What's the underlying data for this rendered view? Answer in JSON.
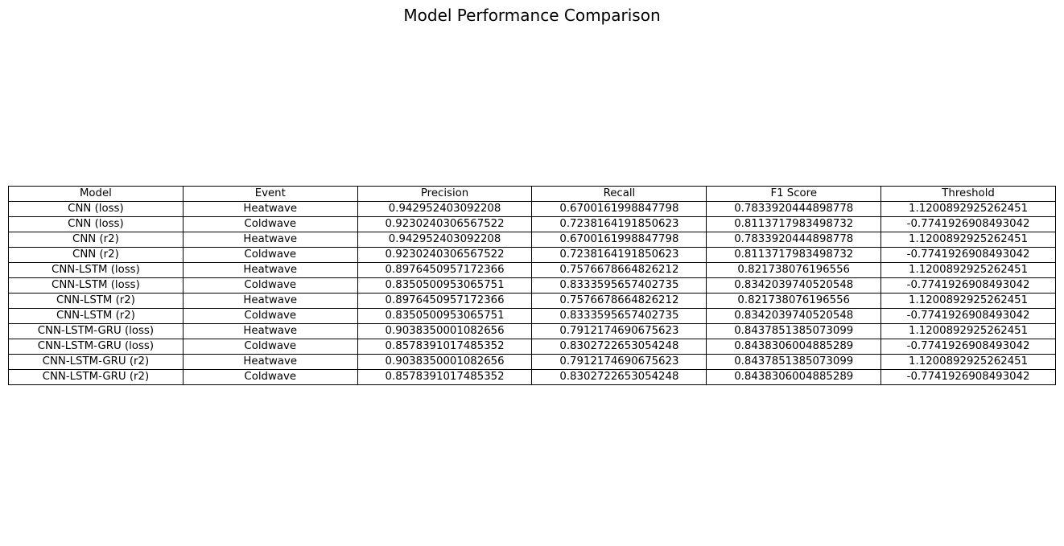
{
  "chart_data": {
    "type": "table",
    "title": "Model Performance Comparison",
    "columns": [
      "Model",
      "Event",
      "Precision",
      "Recall",
      "F1 Score",
      "Threshold"
    ],
    "rows": [
      [
        "CNN (loss)",
        "Heatwave",
        "0.942952403092208",
        "0.6700161998847798",
        "0.7833920444898778",
        "1.1200892925262451"
      ],
      [
        "CNN (loss)",
        "Coldwave",
        "0.9230240306567522",
        "0.7238164191850623",
        "0.8113717983498732",
        "-0.7741926908493042"
      ],
      [
        "CNN (r2)",
        "Heatwave",
        "0.942952403092208",
        "0.6700161998847798",
        "0.7833920444898778",
        "1.1200892925262451"
      ],
      [
        "CNN (r2)",
        "Coldwave",
        "0.9230240306567522",
        "0.7238164191850623",
        "0.8113717983498732",
        "-0.7741926908493042"
      ],
      [
        "CNN-LSTM (loss)",
        "Heatwave",
        "0.8976450957172366",
        "0.7576678664826212",
        "0.821738076196556",
        "1.1200892925262451"
      ],
      [
        "CNN-LSTM (loss)",
        "Coldwave",
        "0.8350500953065751",
        "0.8333595657402735",
        "0.8342039740520548",
        "-0.7741926908493042"
      ],
      [
        "CNN-LSTM (r2)",
        "Heatwave",
        "0.8976450957172366",
        "0.7576678664826212",
        "0.821738076196556",
        "1.1200892925262451"
      ],
      [
        "CNN-LSTM (r2)",
        "Coldwave",
        "0.8350500953065751",
        "0.8333595657402735",
        "0.8342039740520548",
        "-0.7741926908493042"
      ],
      [
        "CNN-LSTM-GRU (loss)",
        "Heatwave",
        "0.9038350001082656",
        "0.7912174690675623",
        "0.8437851385073099",
        "1.1200892925262451"
      ],
      [
        "CNN-LSTM-GRU (loss)",
        "Coldwave",
        "0.8578391017485352",
        "0.8302722653054248",
        "0.8438306004885289",
        "-0.7741926908493042"
      ],
      [
        "CNN-LSTM-GRU (r2)",
        "Heatwave",
        "0.9038350001082656",
        "0.7912174690675623",
        "0.8437851385073099",
        "1.1200892925262451"
      ],
      [
        "CNN-LSTM-GRU (r2)",
        "Coldwave",
        "0.8578391017485352",
        "0.8302722653054248",
        "0.8438306004885289",
        "-0.7741926908493042"
      ]
    ]
  }
}
